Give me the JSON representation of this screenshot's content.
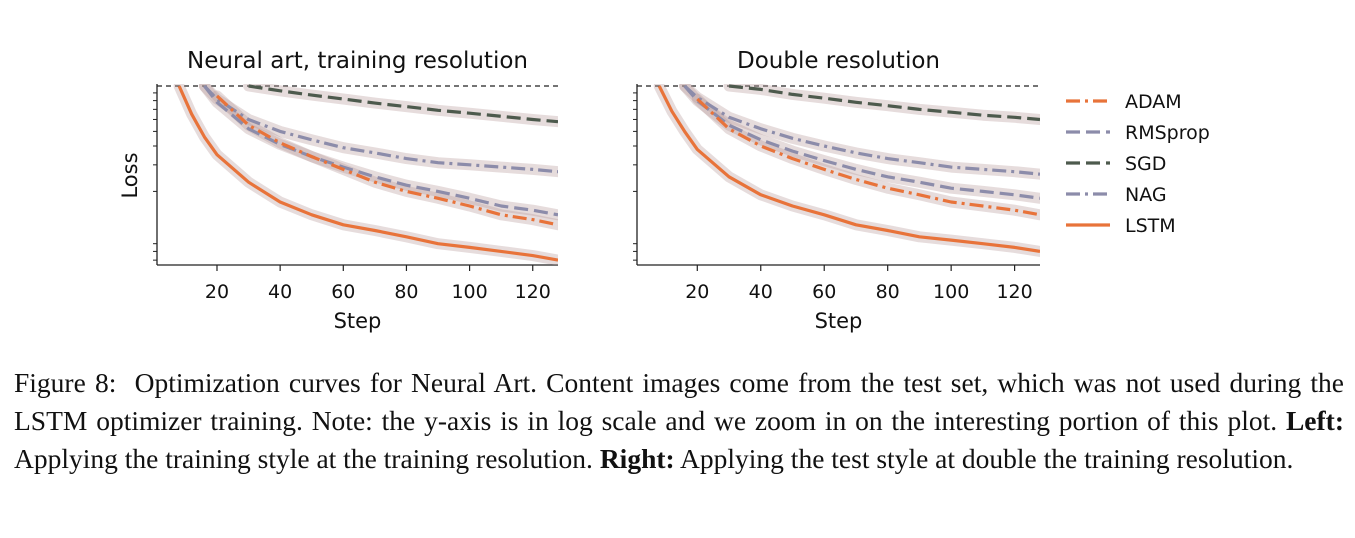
{
  "chart_data": [
    {
      "type": "line",
      "title": "Neural art, training resolution",
      "xlabel": "Step",
      "ylabel": "Loss",
      "yscale": "log",
      "xlim": [
        1,
        128
      ],
      "xticks": [
        20,
        40,
        60,
        80,
        100,
        120
      ],
      "reference_line": "dashed line at top of axes",
      "x": [
        8,
        12,
        16,
        20,
        30,
        40,
        50,
        60,
        70,
        80,
        90,
        100,
        110,
        120,
        128
      ],
      "series": [
        {
          "name": "ADAM",
          "color": "#e8733a",
          "style": "dashdot",
          "values": [
            null,
            null,
            null,
            0.86,
            0.55,
            0.42,
            0.34,
            0.28,
            0.23,
            0.2,
            0.18,
            0.16,
            0.14,
            0.13,
            0.12
          ]
        },
        {
          "name": "RMSprop",
          "color": "#8c8caa",
          "style": "dashed",
          "values": [
            null,
            null,
            1.0,
            0.78,
            0.52,
            0.41,
            0.34,
            0.29,
            0.25,
            0.22,
            0.2,
            0.18,
            0.16,
            0.15,
            0.14
          ]
        },
        {
          "name": "SGD",
          "color": "#4d5a4d",
          "style": "dashed",
          "values": [
            null,
            null,
            null,
            null,
            1.0,
            0.93,
            0.87,
            0.82,
            0.77,
            0.73,
            0.69,
            0.66,
            0.63,
            0.6,
            0.58
          ]
        },
        {
          "name": "NAG",
          "color": "#8c8caa",
          "style": "dashdot",
          "values": [
            null,
            null,
            1.0,
            0.82,
            0.6,
            0.5,
            0.44,
            0.39,
            0.36,
            0.33,
            0.31,
            0.3,
            0.29,
            0.28,
            0.27
          ]
        },
        {
          "name": "LSTM",
          "color": "#e8733a",
          "style": "solid",
          "values": [
            1.0,
            0.65,
            0.46,
            0.35,
            0.23,
            0.17,
            0.14,
            0.12,
            0.11,
            0.1,
            0.09,
            0.085,
            0.08,
            0.075,
            0.07
          ]
        }
      ]
    },
    {
      "type": "line",
      "title": "Double resolution",
      "xlabel": "Step",
      "ylabel": "",
      "yscale": "log",
      "xlim": [
        1,
        128
      ],
      "xticks": [
        20,
        40,
        60,
        80,
        100,
        120
      ],
      "reference_line": "dashed line at top of axes",
      "x": [
        8,
        12,
        16,
        20,
        30,
        40,
        50,
        60,
        70,
        80,
        90,
        100,
        110,
        120,
        128
      ],
      "series": [
        {
          "name": "ADAM",
          "color": "#e8733a",
          "style": "dashdot",
          "values": [
            null,
            null,
            null,
            0.82,
            0.52,
            0.4,
            0.33,
            0.28,
            0.24,
            0.21,
            0.19,
            0.17,
            0.16,
            0.15,
            0.14
          ]
        },
        {
          "name": "RMSprop",
          "color": "#8c8caa",
          "style": "dashed",
          "values": [
            null,
            null,
            1.0,
            0.8,
            0.55,
            0.44,
            0.37,
            0.32,
            0.28,
            0.25,
            0.23,
            0.21,
            0.2,
            0.19,
            0.18
          ]
        },
        {
          "name": "SGD",
          "color": "#4d5a4d",
          "style": "dashed",
          "values": [
            null,
            null,
            null,
            null,
            1.0,
            0.95,
            0.88,
            0.83,
            0.78,
            0.74,
            0.7,
            0.67,
            0.64,
            0.62,
            0.6
          ]
        },
        {
          "name": "NAG",
          "color": "#8c8caa",
          "style": "dashdot",
          "values": [
            null,
            null,
            1.0,
            0.84,
            0.62,
            0.52,
            0.45,
            0.4,
            0.36,
            0.33,
            0.31,
            0.29,
            0.28,
            0.27,
            0.26
          ]
        },
        {
          "name": "LSTM",
          "color": "#e8733a",
          "style": "solid",
          "values": [
            1.0,
            0.68,
            0.5,
            0.38,
            0.25,
            0.19,
            0.16,
            0.14,
            0.12,
            0.11,
            0.1,
            0.095,
            0.09,
            0.085,
            0.08
          ]
        }
      ]
    }
  ],
  "legend": {
    "placement": "right",
    "entries": [
      "ADAM",
      "RMSprop",
      "SGD",
      "NAG",
      "LSTM"
    ]
  },
  "caption": {
    "label": "Figure 8:",
    "text1": "Optimization curves for Neural Art. Content images come from the test set, which was not used during the LSTM optimizer training. Note: the y-axis is in log scale and we zoom in on the interesting portion of this plot.",
    "left_label": "Left:",
    "left_text": "Applying the training style at the training resolution.",
    "right_label": "Right:",
    "right_text": "Applying the test style at double the training resolution."
  }
}
